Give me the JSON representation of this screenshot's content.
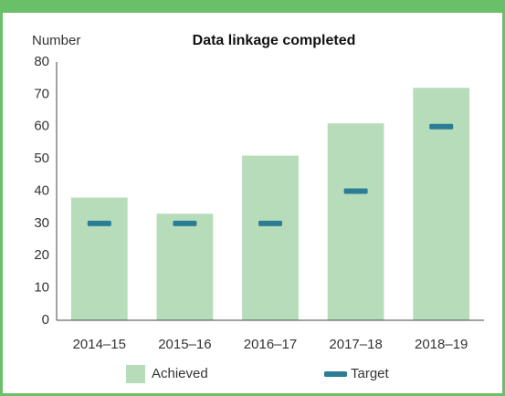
{
  "chart_data": {
    "type": "bar",
    "title": "Data linkage completed",
    "y_label": "Number",
    "categories": [
      "2014–15",
      "2015–16",
      "2016–17",
      "2017–18",
      "2018–19"
    ],
    "series": [
      {
        "name": "Achieved",
        "type": "bar",
        "color": "#b7dcb9",
        "values": [
          38,
          33,
          51,
          61,
          72
        ]
      },
      {
        "name": "Target",
        "type": "marker",
        "color": "#2b7d96",
        "values": [
          30,
          30,
          30,
          40,
          60
        ]
      }
    ],
    "ylim": [
      0,
      80
    ],
    "yticks": [
      0,
      10,
      20,
      30,
      40,
      50,
      60,
      70,
      80
    ],
    "grid": false,
    "legend": "bottom"
  }
}
